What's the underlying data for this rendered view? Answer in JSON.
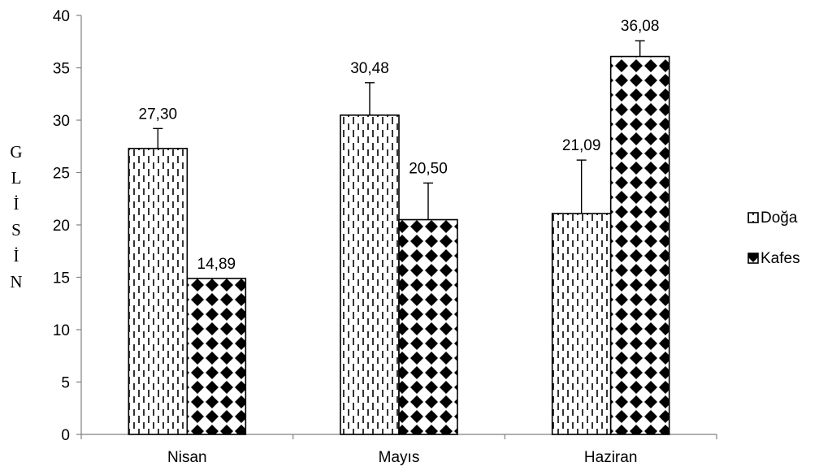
{
  "chart_data": {
    "type": "bar",
    "categories": [
      "Nisan",
      "Mayıs",
      "Haziran"
    ],
    "series": [
      {
        "name": "Doğa",
        "values": [
          27.3,
          30.48,
          21.09
        ],
        "error": [
          1.9,
          3.1,
          5.1
        ],
        "labels": [
          "27,30",
          "30,48",
          "21,09"
        ]
      },
      {
        "name": "Kafes",
        "values": [
          14.89,
          20.5,
          36.08
        ],
        "error": [
          0.0,
          3.5,
          1.5
        ],
        "labels": [
          "14,89",
          "20,50",
          "36,08"
        ]
      }
    ],
    "ylabel_letters": [
      "G",
      "L",
      "İ",
      "S",
      "İ",
      "N"
    ],
    "ylim": [
      0,
      40
    ],
    "yticks": [
      "0",
      "5",
      "10",
      "15",
      "20",
      "25",
      "30",
      "35",
      "40"
    ],
    "legend": "right",
    "grid": false
  }
}
